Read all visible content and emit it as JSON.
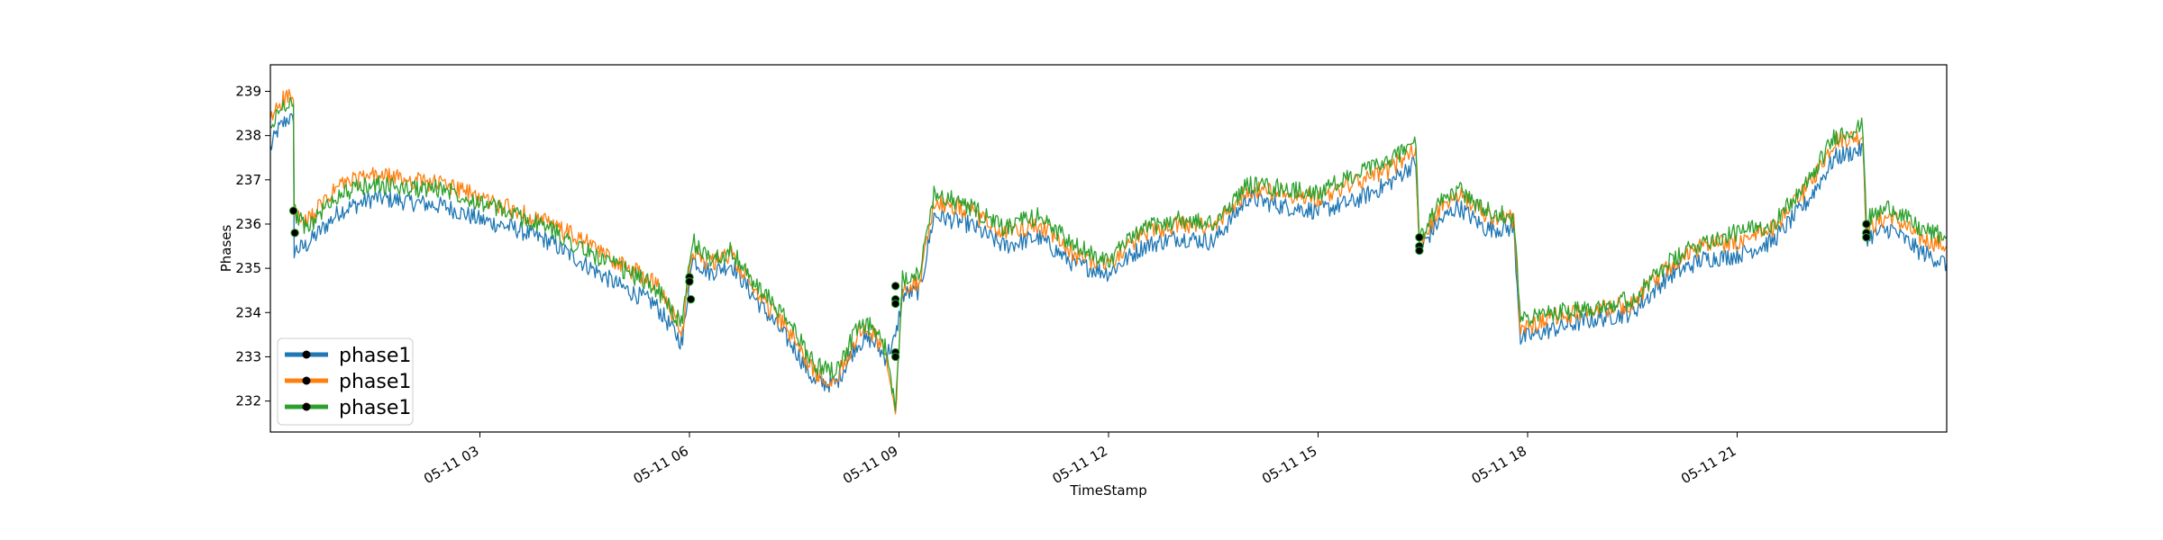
{
  "chart_data": {
    "type": "line",
    "title": "",
    "xlabel": "TimeStamp",
    "ylabel": "Phases",
    "x_range": [
      "2021-05-11 00:00",
      "2021-05-12 00:00"
    ],
    "ylim": [
      231.3,
      239.6
    ],
    "yticks": [
      232,
      233,
      234,
      235,
      236,
      237,
      238,
      239
    ],
    "xticks": [
      {
        "t": 3,
        "label": "05-11 03"
      },
      {
        "t": 6,
        "label": "05-11 06"
      },
      {
        "t": 9,
        "label": "05-11 09"
      },
      {
        "t": 12,
        "label": "05-11 12"
      },
      {
        "t": 15,
        "label": "05-11 15"
      },
      {
        "t": 18,
        "label": "05-11 18"
      },
      {
        "t": 21,
        "label": "05-11 21"
      }
    ],
    "grid": false,
    "legend_position": "lower-left",
    "series": [
      {
        "name": "phase1",
        "color": "#1f77b4",
        "x": [
          0,
          0.1,
          0.25,
          0.33,
          0.34,
          0.5,
          1,
          1.5,
          2,
          2.5,
          3,
          3.5,
          4,
          4.5,
          5,
          5.5,
          5.9,
          6,
          6.05,
          6.3,
          6.6,
          6.9,
          7.2,
          7.5,
          7.8,
          8.1,
          8.4,
          8.6,
          8.8,
          8.95,
          9.05,
          9.3,
          9.5,
          10,
          10.5,
          11,
          11.5,
          12,
          12.5,
          13,
          13.5,
          14,
          14.5,
          15,
          15.5,
          16,
          16.4,
          16.45,
          16.7,
          17,
          17.4,
          17.8,
          17.9,
          18.3,
          18.8,
          19.5,
          20,
          20.5,
          21,
          21.5,
          22,
          22.4,
          22.8,
          22.85,
          23.2,
          23.6,
          24
        ],
        "y": [
          237.7,
          238.1,
          238.4,
          238.3,
          235.4,
          235.5,
          236.3,
          236.6,
          236.5,
          236.4,
          236.1,
          235.9,
          235.6,
          235.1,
          234.6,
          234.2,
          233.3,
          234.8,
          235.2,
          234.9,
          235.1,
          234.4,
          233.8,
          233.2,
          232.4,
          232.4,
          233.3,
          233.4,
          233.0,
          233.4,
          234.4,
          234.5,
          236.2,
          236.0,
          235.5,
          235.7,
          235.1,
          234.9,
          235.5,
          235.7,
          235.6,
          236.6,
          236.4,
          236.3,
          236.5,
          236.9,
          237.4,
          235.4,
          236.0,
          236.4,
          235.9,
          235.9,
          233.4,
          233.6,
          233.8,
          234.0,
          234.8,
          235.2,
          235.3,
          235.6,
          236.5,
          237.5,
          237.7,
          235.7,
          235.9,
          235.4,
          235.1
        ]
      },
      {
        "name": "phase1",
        "color": "#ff7f0e",
        "x": [
          0,
          0.1,
          0.25,
          0.33,
          0.34,
          0.5,
          1,
          1.5,
          2,
          2.5,
          3,
          3.5,
          4,
          4.5,
          5,
          5.5,
          5.9,
          6,
          6.05,
          6.3,
          6.6,
          6.9,
          7.2,
          7.5,
          7.8,
          8.1,
          8.4,
          8.6,
          8.8,
          8.95,
          9.05,
          9.3,
          9.5,
          10,
          10.5,
          11,
          11.5,
          12,
          12.5,
          13,
          13.5,
          14,
          14.5,
          15,
          15.5,
          16,
          16.4,
          16.45,
          16.7,
          17,
          17.4,
          17.8,
          17.9,
          18.3,
          18.8,
          19.5,
          20,
          20.5,
          21,
          21.5,
          22,
          22.4,
          22.8,
          22.85,
          23.2,
          23.6,
          24
        ],
        "y": [
          238.3,
          238.7,
          238.9,
          238.8,
          236.2,
          236.0,
          236.9,
          237.1,
          237.0,
          236.9,
          236.6,
          236.3,
          236.0,
          235.6,
          235.1,
          234.7,
          233.6,
          235.0,
          235.4,
          235.1,
          235.3,
          234.6,
          234.0,
          233.4,
          232.6,
          232.5,
          233.5,
          233.6,
          233.1,
          231.7,
          234.6,
          234.7,
          236.5,
          236.3,
          235.8,
          236.0,
          235.3,
          235.1,
          235.8,
          236.0,
          235.9,
          236.8,
          236.7,
          236.6,
          236.9,
          237.2,
          237.7,
          235.4,
          236.3,
          236.7,
          236.2,
          236.1,
          233.6,
          233.9,
          234.0,
          234.2,
          235.0,
          235.5,
          235.6,
          235.9,
          236.8,
          237.9,
          238.0,
          235.9,
          236.2,
          235.7,
          235.5
        ]
      },
      {
        "name": "phase1",
        "color": "#2ca02c",
        "x": [
          0,
          0.1,
          0.25,
          0.33,
          0.34,
          0.5,
          1,
          1.5,
          2,
          2.5,
          3,
          3.5,
          4,
          4.5,
          5,
          5.5,
          5.9,
          6,
          6.05,
          6.3,
          6.6,
          6.9,
          7.2,
          7.5,
          7.8,
          8.1,
          8.4,
          8.6,
          8.8,
          8.95,
          9.05,
          9.3,
          9.5,
          10,
          10.5,
          11,
          11.5,
          12,
          12.5,
          13,
          13.5,
          14,
          14.5,
          15,
          15.5,
          16,
          16.4,
          16.45,
          16.7,
          17,
          17.4,
          17.8,
          17.9,
          18.3,
          18.8,
          19.5,
          20,
          20.5,
          21,
          21.5,
          22,
          22.4,
          22.8,
          22.85,
          23.2,
          23.6,
          24
        ],
        "y": [
          238.1,
          238.5,
          238.8,
          238.7,
          236.3,
          235.9,
          236.7,
          236.9,
          236.8,
          236.8,
          236.5,
          236.2,
          235.9,
          235.4,
          235.0,
          234.6,
          233.7,
          235.1,
          235.6,
          235.2,
          235.4,
          234.7,
          234.2,
          233.6,
          232.8,
          232.7,
          233.6,
          233.7,
          233.2,
          231.9,
          234.8,
          234.9,
          236.7,
          236.4,
          235.9,
          236.2,
          235.5,
          235.2,
          235.9,
          236.1,
          236.0,
          236.9,
          236.8,
          236.7,
          237.1,
          237.4,
          237.9,
          235.6,
          236.4,
          236.8,
          236.3,
          236.2,
          233.8,
          234.0,
          234.1,
          234.3,
          235.1,
          235.6,
          235.8,
          236.0,
          236.9,
          238.0,
          238.2,
          236.1,
          236.4,
          235.9,
          235.7
        ]
      }
    ],
    "markers": [
      {
        "x": 0.33,
        "y": 236.3
      },
      {
        "x": 0.35,
        "y": 235.8
      },
      {
        "x": 6.0,
        "y": 234.8
      },
      {
        "x": 6.0,
        "y": 234.7
      },
      {
        "x": 6.02,
        "y": 234.3
      },
      {
        "x": 8.95,
        "y": 234.6
      },
      {
        "x": 8.95,
        "y": 234.3
      },
      {
        "x": 8.95,
        "y": 234.2
      },
      {
        "x": 8.95,
        "y": 233.1
      },
      {
        "x": 8.95,
        "y": 233.0
      },
      {
        "x": 16.45,
        "y": 235.7
      },
      {
        "x": 16.45,
        "y": 235.5
      },
      {
        "x": 16.45,
        "y": 235.4
      },
      {
        "x": 22.85,
        "y": 236.0
      },
      {
        "x": 22.85,
        "y": 235.8
      },
      {
        "x": 22.85,
        "y": 235.7
      }
    ]
  }
}
